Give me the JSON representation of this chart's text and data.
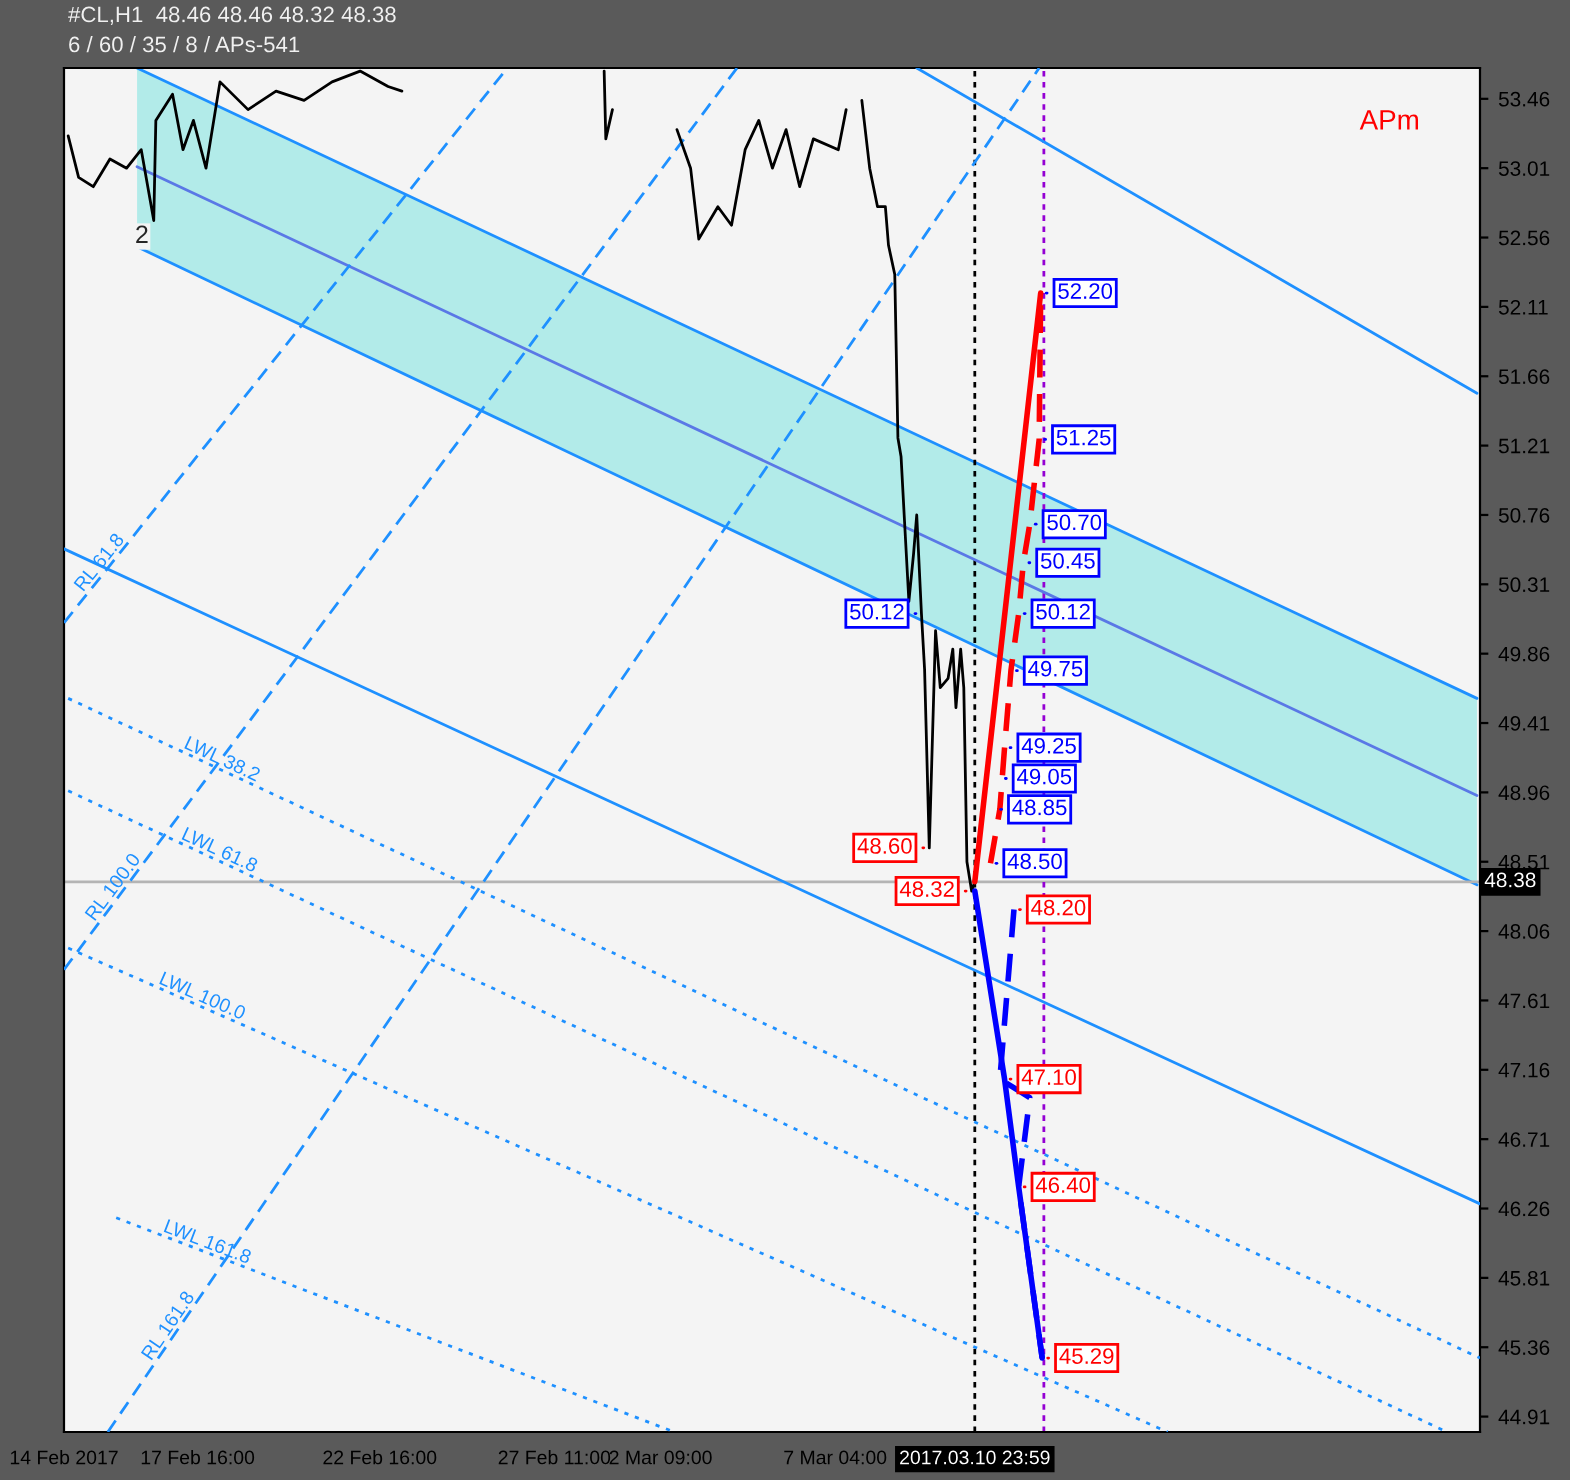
{
  "chart_data": {
    "type": "line",
    "title": "#CL,H1  48.46 48.46 48.32 48.38",
    "subtitle": "6 / 60 / 35 / 8 / APs-541",
    "xlim": [
      "2017-02-14T00:00",
      "2017-03-24T20:47"
    ],
    "ylim": [
      44.81,
      53.66
    ],
    "xticks": [
      {
        "value": "2017-02-14T00:00",
        "label": "14 Feb 2017"
      },
      {
        "value": "2017-02-17T16:00",
        "label": "17 Feb 16:00"
      },
      {
        "value": "2017-02-22T16:00",
        "label": "22 Feb 16:00"
      },
      {
        "value": "2017-02-27T11:00",
        "label": "27 Feb 11:00"
      },
      {
        "value": "2017-03-02T09:00",
        "label": "2 Mar 09:00"
      },
      {
        "value": "2017-03-07T04:00",
        "label": "7 Mar 04:00"
      },
      {
        "value": "2017-03-10T23:59",
        "label": "2017.03.10 23:59"
      }
    ],
    "yticks": [
      44.91,
      45.36,
      45.81,
      46.26,
      46.71,
      47.16,
      47.61,
      48.06,
      48.51,
      48.96,
      49.41,
      49.86,
      50.31,
      50.76,
      51.21,
      51.66,
      52.11,
      52.56,
      53.01,
      53.46
    ],
    "grid": false,
    "marker": "none",
    "ref_lines": [
      {
        "axis": "y",
        "value": 48.38,
        "label": "48.38",
        "color": "#b4b4b4",
        "line_style": "solid"
      },
      {
        "axis": "x",
        "value": "2017-03-10T23:59",
        "label": null,
        "color": "#000000",
        "line_style": "dashed"
      },
      {
        "axis": "x",
        "value": "2017-03-12T21:29",
        "label": null,
        "color": "#9400d3",
        "line_style": "dashed"
      }
    ],
    "series": [
      {
        "color": "#5a78e6",
        "line_style": "solid",
        "x": [
          "2017-02-16T00:08",
          "2017-03-24T18:47"
        ],
        "values": [
          53.02,
          48.94
        ],
        "lower": [
          52.5,
          48.36
        ],
        "upper": [
          53.66,
          49.57
        ]
      },
      {
        "color": "#1e90ff",
        "line_style": "solid",
        "x": [
          "2017-02-14T00:00",
          "2017-03-24T20:47"
        ],
        "values": [
          50.54,
          46.29
        ]
      },
      {
        "color": "#1e90ff",
        "line_style": "solid",
        "x": [
          "2017-03-09T09:44",
          "2017-03-24T18:47"
        ],
        "values": [
          53.66,
          51.55
        ]
      },
      {
        "name": "LWL 38.2",
        "color": "#1e90ff",
        "line_style": "dotted",
        "x": [
          "2017-02-14T02:45",
          "2017-03-24T20:47"
        ],
        "values": [
          49.57,
          45.29
        ]
      },
      {
        "name": "LWL 61.8",
        "color": "#1e90ff",
        "line_style": "dotted",
        "x": [
          "2017-02-14T02:45",
          "2017-03-23T23:05"
        ],
        "values": [
          48.97,
          44.81
        ]
      },
      {
        "name": "LWL 100.0",
        "color": "#1e90ff",
        "line_style": "dotted",
        "x": [
          "2017-02-14T02:45",
          "2017-03-16T07:05"
        ],
        "values": [
          47.95,
          44.81
        ]
      },
      {
        "name": "LWL 161.8",
        "color": "#1e90ff",
        "line_style": "dotted",
        "x": [
          "2017-02-15T10:23",
          "2017-03-02T18:00"
        ],
        "values": [
          46.2,
          44.81
        ]
      },
      {
        "name": "RL 61.8",
        "color": "#1e90ff",
        "line_style": "dashed",
        "x": [
          "2017-02-14T00:00",
          "2017-02-26T04:00"
        ],
        "values": [
          50.06,
          53.66
        ]
      },
      {
        "name": "RL 100.0",
        "color": "#1e90ff",
        "line_style": "dashed",
        "x": [
          "2017-02-14T00:00",
          "2017-03-04T11:19"
        ],
        "values": [
          47.81,
          53.66
        ]
      },
      {
        "name": "RL 161.8",
        "color": "#1e90ff",
        "line_style": "dashed",
        "x": [
          "2017-02-15T04:52",
          "2017-03-12T18:23"
        ],
        "values": [
          44.81,
          53.66
        ]
      },
      {
        "color": "#000000",
        "line_style": "solid",
        "x": [
          "2017-02-14T02:45",
          "2017-02-14T09:38",
          "2017-02-14T19:15",
          "2017-02-15T06:15",
          "2017-02-15T17:15",
          "2017-02-16T02:53",
          "2017-02-16T11:08",
          "2017-02-16T12:30",
          "2017-02-16T23:30",
          "2017-02-17T06:23",
          "2017-02-17T13:15",
          "2017-02-17T21:32",
          "2017-02-18T06:46",
          "2017-02-19T01:14",
          "2017-02-19T19:41",
          "2017-02-20T14:09",
          "2017-02-21T08:36",
          "2017-02-22T03:04",
          "2017-02-22T21:29",
          "2017-02-23T06:36",
          "2017-02-23T12:04",
          "2017-02-26T13:04",
          "2017-02-28T17:38",
          "2017-02-28T19:49",
          "2017-02-28T20:55",
          "2017-03-01T01:17",
          "2017-03-01T06:45",
          "2017-03-01T21:00",
          "2017-03-02T10:48",
          "2017-03-02T19:47",
          "2017-03-03T04:46",
          "2017-03-03T10:09",
          "2017-03-03T22:44",
          "2017-03-04T07:43",
          "2017-03-04T16:42",
          "2017-03-05T01:41",
          "2017-03-05T10:40",
          "2017-03-05T19:39",
          "2017-03-06T04:38",
          "2017-03-06T13:38",
          "2017-03-07T06:04",
          "2017-03-07T11:14",
          "2017-03-07T16:24",
          "2017-03-07T21:34",
          "2017-03-08T02:44",
          "2017-03-08T07:54",
          "2017-03-08T13:04",
          "2017-03-08T15:08",
          "2017-03-08T19:16",
          "2017-03-08T21:20",
          "2017-03-08T23:24",
          "2017-03-09T01:28",
          "2017-03-09T04:34",
          "2017-03-09T07:40",
          "2017-03-09T09:44",
          "2017-03-09T12:50",
          "2017-03-09T14:54",
          "2017-03-09T18:00",
          "2017-03-09T22:08",
          "2017-03-10T01:14",
          "2017-03-10T06:24",
          "2017-03-10T09:30",
          "2017-03-10T11:34",
          "2017-03-10T14:40",
          "2017-03-10T16:44",
          "2017-03-10T18:48",
          "2017-03-10T21:54",
          "2017-03-10T23:59"
        ],
        "values": [
          53.22,
          52.95,
          52.89,
          53.07,
          53.01,
          53.13,
          52.67,
          53.32,
          53.49,
          53.13,
          53.32,
          53.01,
          53.57,
          53.39,
          53.51,
          53.45,
          53.57,
          53.64,
          53.54,
          53.51,
          null,
          null,
          null,
          53.64,
          53.2,
          53.39,
          null,
          null,
          null,
          53.26,
          53.01,
          52.55,
          52.76,
          52.64,
          53.13,
          53.32,
          53.01,
          53.26,
          52.89,
          53.2,
          53.13,
          53.39,
          null,
          53.45,
          53.01,
          52.76,
          52.76,
          52.51,
          52.32,
          51.26,
          51.14,
          50.76,
          50.2,
          50.51,
          50.76,
          50.12,
          49.76,
          48.6,
          50.01,
          49.64,
          49.7,
          49.89,
          49.51,
          49.89,
          49.64,
          48.51,
          48.32,
          48.38
        ]
      },
      {
        "color": "#ff0000",
        "line_style": "solid",
        "x": [
          "2017-03-10T23:59",
          "2017-03-12T19:23"
        ],
        "values": [
          48.38,
          52.2
        ]
      },
      {
        "color": "#ff0000",
        "line_style": "dashed",
        "x": [
          "2017-03-11T10:19",
          "2017-03-11T16:29",
          "2017-03-11T19:35",
          "2017-03-11T23:47",
          "2017-03-12T04:53",
          "2017-03-12T07:59",
          "2017-03-12T12:11",
          "2017-03-12T18:23",
          "2017-03-12T19:23"
        ],
        "values": [
          48.5,
          48.85,
          49.25,
          49.75,
          50.12,
          50.45,
          50.7,
          51.25,
          52.2
        ]
      },
      {
        "color": "#0000ff",
        "line_style": "solid",
        "x": [
          "2017-03-10T23:59",
          "2017-03-11T19:35",
          "2017-03-12T04:53",
          "2017-03-12T20:23"
        ],
        "values": [
          48.32,
          47.1,
          46.4,
          45.29
        ]
      },
      {
        "color": "#0000ff",
        "line_style": "dashed",
        "x": [
          "2017-03-12T01:47",
          "2017-03-11T16:29",
          "2017-03-12T12:11",
          "2017-03-12T04:53",
          "2017-03-12T20:23"
        ],
        "values": [
          48.2,
          47.1,
          46.98,
          46.4,
          45.29
        ]
      }
    ],
    "annotations": [
      {
        "text": "52.20",
        "x": "2017-03-12T19:23",
        "y": 52.2
      },
      {
        "text": "51.25",
        "x": "2017-03-12T18:23",
        "y": 51.25
      },
      {
        "text": "50.70",
        "x": "2017-03-12T12:11",
        "y": 50.7
      },
      {
        "text": "50.45",
        "x": "2017-03-12T07:59",
        "y": 50.45
      },
      {
        "text": "50.12",
        "x": "2017-03-12T04:53",
        "y": 50.12
      },
      {
        "text": "49.75",
        "x": "2017-03-11T23:47",
        "y": 49.75
      },
      {
        "text": "49.25",
        "x": "2017-03-11T19:35",
        "y": 49.25
      },
      {
        "text": "49.05",
        "x": "2017-03-11T16:29",
        "y": 49.05
      },
      {
        "text": "48.85",
        "x": "2017-03-11T13:23",
        "y": 48.85
      },
      {
        "text": "48.50",
        "x": "2017-03-11T10:19",
        "y": 48.5
      },
      {
        "text": "48.20",
        "x": "2017-03-12T01:47",
        "y": 48.2
      },
      {
        "text": "47.10",
        "x": "2017-03-11T19:35",
        "y": 47.1
      },
      {
        "text": "46.40",
        "x": "2017-03-12T04:53",
        "y": 46.4
      },
      {
        "text": "45.29",
        "x": "2017-03-12T20:23",
        "y": 45.29
      },
      {
        "text": "48.60",
        "x": "2017-03-09T18:00",
        "y": 48.6
      },
      {
        "text": "48.32",
        "x": "2017-03-10T21:54",
        "y": 48.32
      },
      {
        "text": "50.12",
        "x": "2017-03-09T12:50",
        "y": 50.12
      },
      "APm",
      "2"
    ]
  }
}
